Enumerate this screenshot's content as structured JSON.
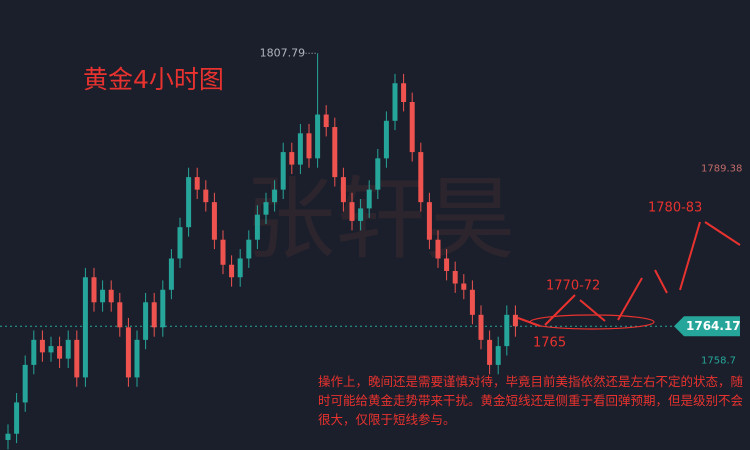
{
  "chart_data": {
    "type": "candlestick",
    "title": "黄金4小时图",
    "watermark": "张轩昊",
    "ylim": [
      1744.4,
      1816.3
    ],
    "open": [
      1746,
      1747,
      1752,
      1758,
      1762,
      1760,
      1761,
      1759,
      1762,
      1756,
      1772,
      1768,
      1770,
      1768,
      1764,
      1756,
      1762,
      1768,
      1764,
      1770,
      1775,
      1780,
      1788,
      1786,
      1784,
      1778,
      1774,
      1772,
      1775,
      1778,
      1782,
      1784,
      1786,
      1792,
      1790,
      1795,
      1791,
      1798,
      1796,
      1788,
      1784,
      1781,
      1783,
      1786,
      1791,
      1797,
      1803,
      1800,
      1792,
      1784,
      1778,
      1775,
      1773,
      1771,
      1770,
      1766,
      1762,
      1758,
      1761,
      1766
    ],
    "high": [
      1748.5,
      1753.5,
      1759.5,
      1763.5,
      1763.5,
      1762.5,
      1762.5,
      1763.5,
      1763.5,
      1773.5,
      1773.5,
      1771.5,
      1771.5,
      1769.5,
      1765.5,
      1763.5,
      1769.5,
      1769.5,
      1771.5,
      1776.5,
      1781.5,
      1789.5,
      1789.5,
      1787.5,
      1785.5,
      1779.5,
      1775.5,
      1776.5,
      1779.5,
      1783.5,
      1785.5,
      1787.5,
      1793.5,
      1793.5,
      1796.5,
      1796.5,
      1807.79,
      1799.5,
      1797.5,
      1789.5,
      1785.5,
      1784.5,
      1787.5,
      1792.5,
      1798.5,
      1804.5,
      1804.5,
      1801.5,
      1793.5,
      1785.5,
      1779.5,
      1776.5,
      1774.5,
      1772.5,
      1771.5,
      1767.5,
      1763.5,
      1762.5,
      1767.5,
      1767.5
    ],
    "low": [
      1744.5,
      1745.5,
      1750.5,
      1756.5,
      1758.5,
      1758.5,
      1757.5,
      1757.5,
      1754.5,
      1754.5,
      1766.5,
      1766.5,
      1766.5,
      1762.5,
      1754.5,
      1754.5,
      1760.5,
      1762.5,
      1762.5,
      1768.5,
      1773.5,
      1778.5,
      1784.5,
      1782.5,
      1776.5,
      1772.5,
      1770.5,
      1770.5,
      1773.5,
      1776.5,
      1780.5,
      1782.5,
      1784.5,
      1788.5,
      1788.5,
      1789.5,
      1789.5,
      1794.5,
      1786.5,
      1782.5,
      1779.5,
      1779.5,
      1781.5,
      1784.5,
      1789.5,
      1795.5,
      1798.5,
      1790.5,
      1782.5,
      1776.5,
      1773.5,
      1771.5,
      1769.5,
      1768.5,
      1764.5,
      1760.5,
      1756.5,
      1756.5,
      1759.5,
      1762.5
    ],
    "close": [
      1747,
      1752,
      1758,
      1762,
      1760,
      1761,
      1759,
      1762,
      1756,
      1772,
      1768,
      1770,
      1768,
      1764,
      1756,
      1762,
      1768,
      1764,
      1770,
      1775,
      1780,
      1788,
      1786,
      1784,
      1778,
      1774,
      1772,
      1775,
      1778,
      1782,
      1784,
      1786,
      1792,
      1790,
      1795,
      1791,
      1798,
      1796,
      1788,
      1784,
      1781,
      1783,
      1786,
      1791,
      1797,
      1803,
      1800,
      1792,
      1784,
      1778,
      1775,
      1773,
      1771,
      1770,
      1766,
      1762,
      1758,
      1761,
      1766,
      1764.17
    ],
    "up_color": "#26a69a",
    "down_color": "#ef5350",
    "high_label": 1807.79,
    "last_price": 1764.17,
    "levels": [
      1789.38,
      1758.7
    ],
    "annotations": [
      "1770-72",
      "1765",
      "1780-83"
    ],
    "commentary": "操作上，晚间还是需要谨慎对待，毕竟目前美指依然还是左右不定的状态，随时可能给黄金走势带来干扰。黄金短线还是侧重于看回弹预期，但是级别不会很大，仅限于短线参与。"
  }
}
